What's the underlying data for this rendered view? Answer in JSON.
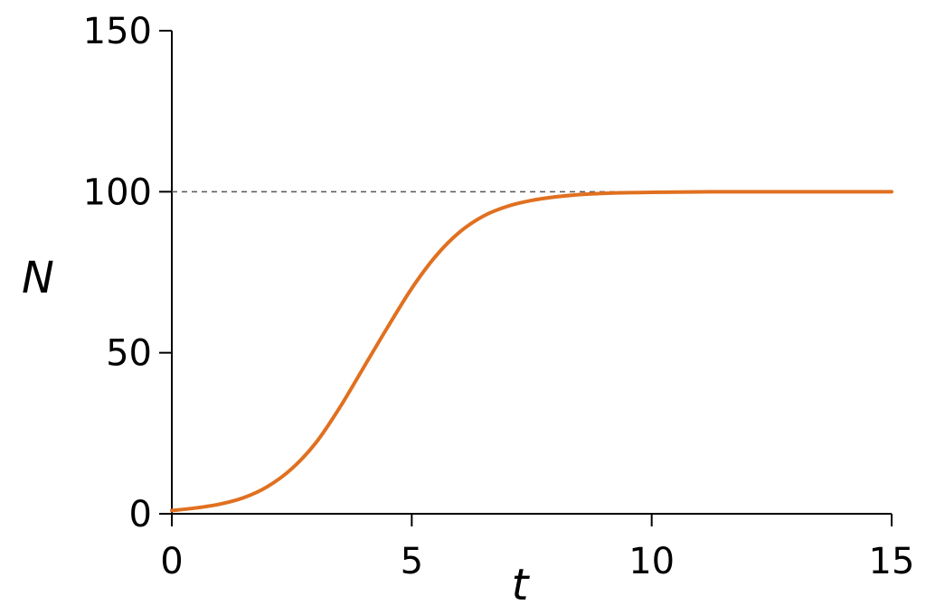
{
  "chart_data": {
    "type": "line",
    "title": "",
    "xlabel": "t",
    "ylabel": "N",
    "xlim": [
      0,
      15
    ],
    "ylim": [
      0,
      150
    ],
    "x_ticks": [
      0,
      5,
      10,
      15
    ],
    "x_tick_labels": [
      "0",
      "5",
      "10",
      "15"
    ],
    "y_ticks": [
      0,
      50,
      100,
      150
    ],
    "y_tick_labels": [
      "0",
      "50",
      "100",
      "150"
    ],
    "grid": false,
    "legend": "none",
    "reference_lines": [
      {
        "orientation": "horizontal",
        "y": 100,
        "style": "dashed",
        "color": "#555555"
      }
    ],
    "series": [
      {
        "color": "#e07020",
        "x": [
          0,
          0.5,
          1,
          1.5,
          2,
          2.5,
          3,
          3.5,
          4,
          4.5,
          5,
          5.5,
          6,
          6.5,
          7,
          7.5,
          8,
          8.5,
          9,
          9.5,
          10,
          10.5,
          11,
          11.5,
          12,
          12.5,
          13,
          13.5,
          14,
          14.5,
          15
        ],
        "y": [
          1,
          1.8,
          3,
          5,
          8.5,
          14,
          22,
          33,
          45.5,
          58,
          70,
          80,
          87.5,
          92.5,
          95.5,
          97.3,
          98.4,
          99.1,
          99.5,
          99.7,
          99.8,
          99.9,
          99.95,
          100,
          100,
          100,
          100,
          100,
          100,
          100,
          100
        ]
      }
    ]
  }
}
